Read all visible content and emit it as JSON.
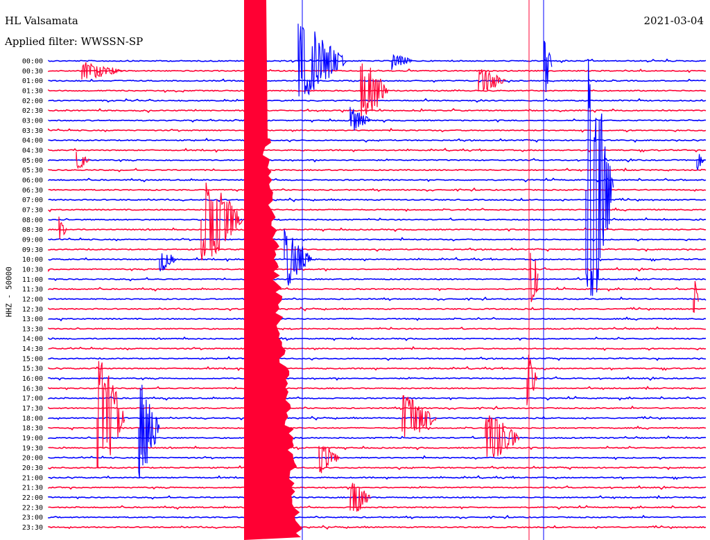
{
  "header": {
    "station": "HL Valsamata",
    "filter": "Applied filter: WWSSN-SP",
    "date": "2021-03-04"
  },
  "axis": {
    "ylabel": "HHZ - 50000"
  },
  "colors": {
    "even_trace": "#ff0033",
    "odd_trace": "#0000ff",
    "background": "#ffffff"
  },
  "chart_data": {
    "type": "line",
    "title": "",
    "xlabel": "",
    "ylabel": "HHZ - 50000",
    "row_labels": [
      "00:00",
      "00:30",
      "01:00",
      "01:30",
      "02:00",
      "02:30",
      "03:00",
      "03:30",
      "04:00",
      "04:30",
      "05:00",
      "05:30",
      "06:00",
      "06:30",
      "07:00",
      "07:30",
      "08:00",
      "08:30",
      "09:00",
      "09:30",
      "10:00",
      "10:30",
      "11:00",
      "11:30",
      "12:00",
      "12:30",
      "13:00",
      "13:30",
      "14:00",
      "14:30",
      "15:00",
      "15:30",
      "16:00",
      "16:30",
      "17:00",
      "17:30",
      "18:00",
      "18:30",
      "19:00",
      "19:30",
      "20:00",
      "20:30",
      "21:00",
      "21:30",
      "22:00",
      "22:30",
      "23:00",
      "23:30"
    ],
    "row_colors": [
      "blue",
      "red"
    ],
    "grid": false,
    "legend": "none"
  }
}
